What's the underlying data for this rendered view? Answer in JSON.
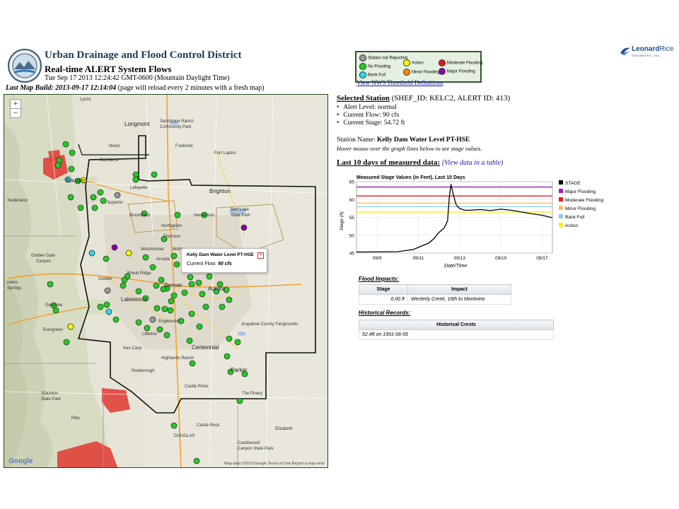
{
  "header": {
    "org_title": "Urban Drainage and Flood Control District",
    "system_title": "Real-time ALERT System Flows",
    "timestamp": "Tue Sep 17 2013 12:24:42 GMT-0600 (Mountain Daylight Time)",
    "build_label": "Last Map Build: 2013-09-17 12:14:04",
    "build_note": "(page will reload every 2 minutes with a fresh map)"
  },
  "legend": {
    "items": [
      {
        "label": "Station not Reporting",
        "color": "#999999"
      },
      {
        "label": "Action",
        "color": "#ffff00"
      },
      {
        "label": "Moderate Flooding",
        "color": "#ee1111"
      },
      {
        "label": "No Flooding",
        "color": "#22cc22"
      },
      {
        "label": "Minor Flooding",
        "color": "#ff8800"
      },
      {
        "label": "Major Flooding",
        "color": "#8800aa"
      },
      {
        "label": "Bank Full",
        "color": "#22ddee"
      }
    ],
    "link": "View NWS Threshold Definitions"
  },
  "company": {
    "name_a": "Leonard",
    "name_b": "Rice",
    "subtitle": "ENGINEERS, INC."
  },
  "map": {
    "zoom_in": "+",
    "zoom_out": "−",
    "info_window": {
      "title": "Kelly Dam Water Level PT-HSE",
      "flow_label": "Current Flow:",
      "flow_value": "90 cfs"
    },
    "labels": {
      "lyons": "Lyons",
      "longmont": "Longmont",
      "sandstone": "Sandstone Ranch",
      "community_park": "Community Park",
      "niwot": "Niwot",
      "gunbarrel": "Gunbarrel",
      "frederick": "Frederick",
      "fort_lupton": "Fort Lupton",
      "lafayette": "Lafayette",
      "boulder": "Boulder",
      "superior": "Superior",
      "brighton": "Brighton",
      "nederland": "Nederland",
      "broomfield": "Broomfield",
      "henderson": "Henderson",
      "barr_lake": "Barr Lake",
      "state_park": "State Park",
      "thornton": "Thornton",
      "northglenn": "Northglenn",
      "westminster": "Westminster",
      "welby": "Welby",
      "golden_gate": "Golden Gate",
      "canyon_sp": "Canyon",
      "arvada": "Arvada",
      "wheat_ridge": "Wheat Ridge",
      "golden": "Golden",
      "idaho": "Idaho",
      "springs": "Springs",
      "denver": "Denver",
      "aurora": "Aurora",
      "lakewood": "Lakewood",
      "genesee": "Genesee",
      "evergreen": "Evergreen",
      "englewood": "Englewood",
      "littleton": "Littleton",
      "centennial": "Centennial",
      "ken_caryl": "Ken Caryl",
      "roxborough": "Roxborough",
      "highlands_ranch": "Highlands Ranch",
      "parker": "Parker",
      "castle_pines": "Castle Pines",
      "castle_rock": "Castle Rock",
      "the_pinery": "The Pinery",
      "elizabeth": "Elizabeth",
      "douglas": "DOUGLAS",
      "castlewood": "Castlewood",
      "canyon_state_park": "Canyon State Park",
      "arapahoe": "Arapahoe County Fairgrounds",
      "staunton": "Staunton",
      "state_park2": "State Park",
      "pike": "Pike"
    },
    "google": "Google",
    "data_credit": "Map data ©2013 Google   Terms of Use   Report a map error"
  },
  "station": {
    "heading": "Selected Station",
    "ids": "(SHEF_ID: KELC2, ALERT ID: 413)",
    "bullets": [
      "Alert Level: normal",
      "Current Flow: 90 cfs",
      "Current Stage: 54.72 ft"
    ],
    "name_label": "Station Name:",
    "name": "Kelly Dam Water Level PT-HSE",
    "hover_hint": "Hover mouse over the graph lines below to see stage values."
  },
  "measured": {
    "heading": "Last 10 days of measured data:",
    "table_link": "(View data in a table)"
  },
  "chart_data": {
    "type": "line",
    "title": "Measured Stage Values (in Feet), Last 10 Days",
    "xlabel": "Date/Time",
    "ylabel": "Stage (ft)",
    "ylim": [
      45,
      65
    ],
    "xlim": [
      "2013-09-08",
      "2013-09-17 12:00"
    ],
    "yticks": [
      45,
      50,
      55,
      60,
      65
    ],
    "xticks": [
      "09/9",
      "09/11",
      "09/13",
      "09/15",
      "09/17"
    ],
    "legend_position": "right",
    "grid": true,
    "thresholds": [
      {
        "name": "Major Flooding",
        "value": 63.5,
        "color": "#9b1fbf"
      },
      {
        "name": "Moderate Flooding",
        "value": 61,
        "color": "#e81c1c"
      },
      {
        "name": "Minor Flooding",
        "value": 59,
        "color": "#f5c060"
      },
      {
        "name": "Bank Full",
        "value": 58,
        "color": "#8ec9e8"
      },
      {
        "name": "Action",
        "value": 56.5,
        "color": "#f5f01c"
      }
    ],
    "series": [
      {
        "name": "STAGE",
        "color": "#000000",
        "x": [
          "2013-09-08 00:00",
          "2013-09-10 00:00",
          "2013-09-10 18:00",
          "2013-09-11 06:00",
          "2013-09-11 12:00",
          "2013-09-11 18:00",
          "2013-09-12 00:00",
          "2013-09-12 06:00",
          "2013-09-12 10:00",
          "2013-09-12 12:00",
          "2013-09-12 14:00",
          "2013-09-12 16:00",
          "2013-09-12 20:00",
          "2013-09-13 00:00",
          "2013-09-13 06:00",
          "2013-09-13 12:00",
          "2013-09-14 00:00",
          "2013-09-14 12:00",
          "2013-09-15 00:00",
          "2013-09-15 12:00",
          "2013-09-16 00:00",
          "2013-09-16 12:00",
          "2013-09-17 00:00",
          "2013-09-17 12:00"
        ],
        "y": [
          45.3,
          45.4,
          46.0,
          47.2,
          47.8,
          49.0,
          50.8,
          52.0,
          54.0,
          60.5,
          64.3,
          62.0,
          58.5,
          57.5,
          57.0,
          57.0,
          57.2,
          56.9,
          57.3,
          57.0,
          56.5,
          56.0,
          55.6,
          54.9
        ]
      }
    ]
  },
  "flood_impacts": {
    "title": "Flood Impacts:",
    "columns": [
      "Stage",
      "Impact"
    ],
    "rows": [
      [
        "0.00 ft",
        "Westerly Creek, 16th to Montview"
      ]
    ]
  },
  "historical": {
    "title": "Historical Records:",
    "columns": [
      "Historical Crests"
    ],
    "rows": [
      [
        "52.4ft on 1991-06-06"
      ]
    ]
  }
}
